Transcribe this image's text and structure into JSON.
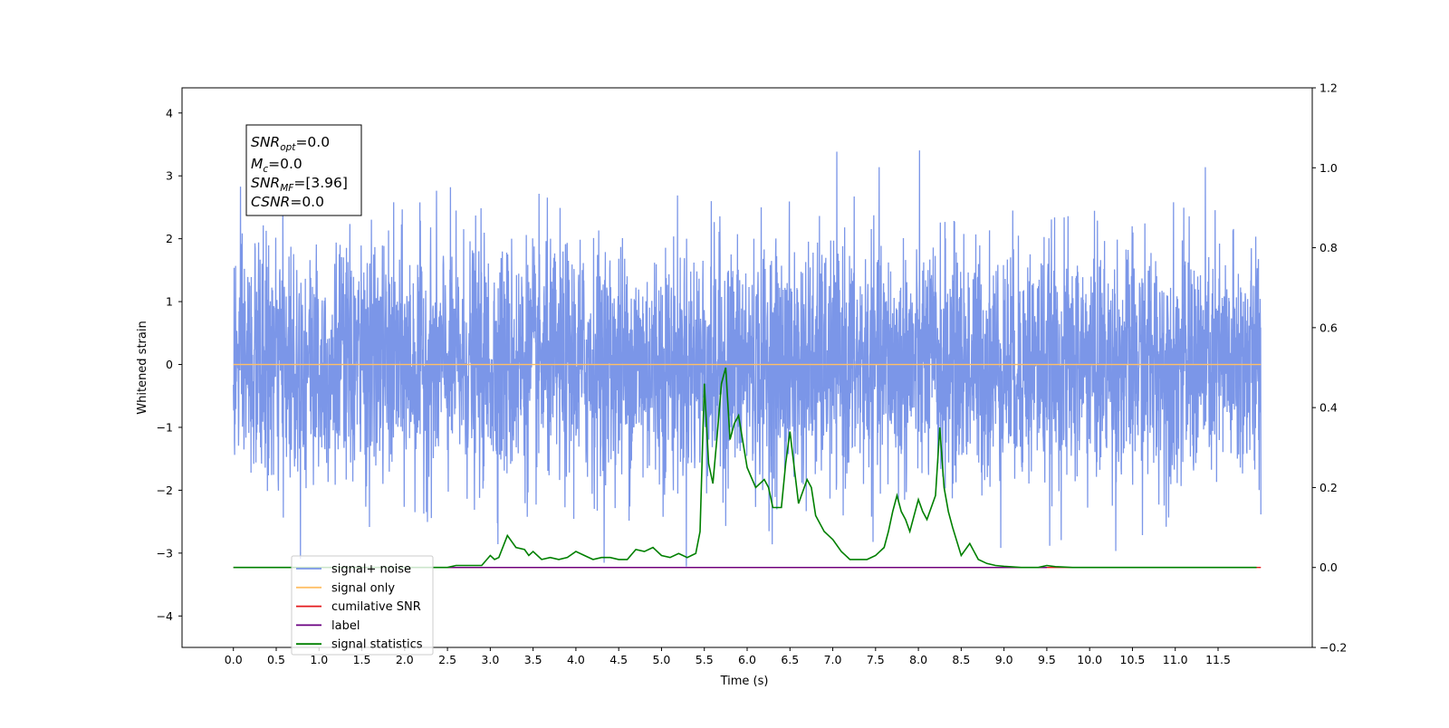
{
  "chart_data": {
    "type": "line",
    "title": "",
    "xlabel": "Time (s)",
    "ylabel": "Whitened strain",
    "y2label": "",
    "xlim": [
      -0.6,
      12.6
    ],
    "ylim": [
      -4.5,
      4.4
    ],
    "y2lim": [
      -0.2,
      1.2
    ],
    "x_ticks": [
      "0.0",
      "0.5",
      "1.0",
      "1.5",
      "2.0",
      "2.5",
      "3.0",
      "3.5",
      "4.0",
      "4.5",
      "5.0",
      "5.5",
      "6.0",
      "6.5",
      "7.0",
      "7.5",
      "8.0",
      "8.5",
      "9.0",
      "9.5",
      "10.0",
      "10.5",
      "11.0",
      "11.5"
    ],
    "y_ticks": [
      "4",
      "3",
      "2",
      "1",
      "0",
      "−1",
      "−2",
      "−3",
      "−4"
    ],
    "y2_ticks": [
      "1.2",
      "1.0",
      "0.8",
      "0.6",
      "0.4",
      "0.2",
      "0.0",
      "−0.2"
    ],
    "grid": false,
    "legend_position": "lower-left",
    "annotation": {
      "snr_opt": "SNR",
      "snr_opt_sub": "opt",
      "snr_opt_val": "=0.0",
      "mc": "M",
      "mc_sub": "c",
      "mc_val": "=0.0",
      "snr_mf": "SNR",
      "snr_mf_sub": "MF",
      "snr_mf_val": "=[3.96]",
      "csnr": "CSNR",
      "csnr_val": "=0.0"
    },
    "series": [
      {
        "name": "signal+ noise",
        "axis": "left",
        "color": "#7b96e8",
        "x_range": [
          0.0,
          12.0
        ],
        "noise_std": 0.95,
        "noise_envelope_max": 4.0,
        "noise_envelope_min": -4.1
      },
      {
        "name": "signal only",
        "axis": "left",
        "color": "#ffbf66",
        "x": [
          0.0,
          12.0
        ],
        "y": [
          0.0,
          0.0
        ]
      },
      {
        "name": "cumilative SNR",
        "axis": "right",
        "color": "#e41a1c",
        "x": [
          0.0,
          12.0
        ],
        "y": [
          0.0,
          0.0
        ]
      },
      {
        "name": "label",
        "axis": "right",
        "color": "#6a0080",
        "x": [
          2.5,
          9.5
        ],
        "y": [
          0.0,
          0.0
        ]
      },
      {
        "name": "signal statistics",
        "axis": "right",
        "color": "#008000",
        "x": [
          0.0,
          0.5,
          1.0,
          1.5,
          2.0,
          2.5,
          2.6,
          2.7,
          2.8,
          2.9,
          3.0,
          3.05,
          3.1,
          3.2,
          3.3,
          3.4,
          3.45,
          3.5,
          3.6,
          3.7,
          3.8,
          3.9,
          4.0,
          4.1,
          4.2,
          4.3,
          4.4,
          4.5,
          4.6,
          4.7,
          4.8,
          4.9,
          5.0,
          5.1,
          5.2,
          5.3,
          5.4,
          5.45,
          5.5,
          5.55,
          5.6,
          5.65,
          5.7,
          5.75,
          5.8,
          5.85,
          5.9,
          6.0,
          6.1,
          6.2,
          6.25,
          6.3,
          6.4,
          6.45,
          6.5,
          6.55,
          6.6,
          6.7,
          6.75,
          6.8,
          6.9,
          7.0,
          7.1,
          7.15,
          7.2,
          7.3,
          7.4,
          7.5,
          7.6,
          7.65,
          7.7,
          7.75,
          7.8,
          7.85,
          7.9,
          8.0,
          8.05,
          8.1,
          8.2,
          8.25,
          8.3,
          8.35,
          8.4,
          8.5,
          8.6,
          8.7,
          8.8,
          8.9,
          9.0,
          9.2,
          9.4,
          9.5,
          9.6,
          9.8,
          10.0,
          10.5,
          11.0,
          11.5,
          11.95
        ],
        "y": [
          0.0,
          0.0,
          0.0,
          0.0,
          0.0,
          0.0,
          0.005,
          0.005,
          0.005,
          0.005,
          0.03,
          0.02,
          0.025,
          0.08,
          0.05,
          0.045,
          0.03,
          0.04,
          0.02,
          0.025,
          0.02,
          0.025,
          0.04,
          0.03,
          0.02,
          0.025,
          0.025,
          0.02,
          0.02,
          0.045,
          0.04,
          0.05,
          0.03,
          0.025,
          0.035,
          0.025,
          0.035,
          0.09,
          0.46,
          0.26,
          0.21,
          0.33,
          0.46,
          0.5,
          0.32,
          0.36,
          0.38,
          0.25,
          0.2,
          0.22,
          0.2,
          0.15,
          0.15,
          0.26,
          0.34,
          0.25,
          0.16,
          0.22,
          0.2,
          0.13,
          0.09,
          0.07,
          0.04,
          0.03,
          0.02,
          0.02,
          0.02,
          0.03,
          0.05,
          0.09,
          0.14,
          0.18,
          0.14,
          0.12,
          0.09,
          0.17,
          0.14,
          0.12,
          0.18,
          0.35,
          0.2,
          0.14,
          0.1,
          0.03,
          0.06,
          0.02,
          0.01,
          0.005,
          0.003,
          0.0,
          0.0,
          0.005,
          0.002,
          0.0,
          0.0,
          0.0,
          0.0,
          0.0,
          0.0
        ]
      }
    ]
  }
}
